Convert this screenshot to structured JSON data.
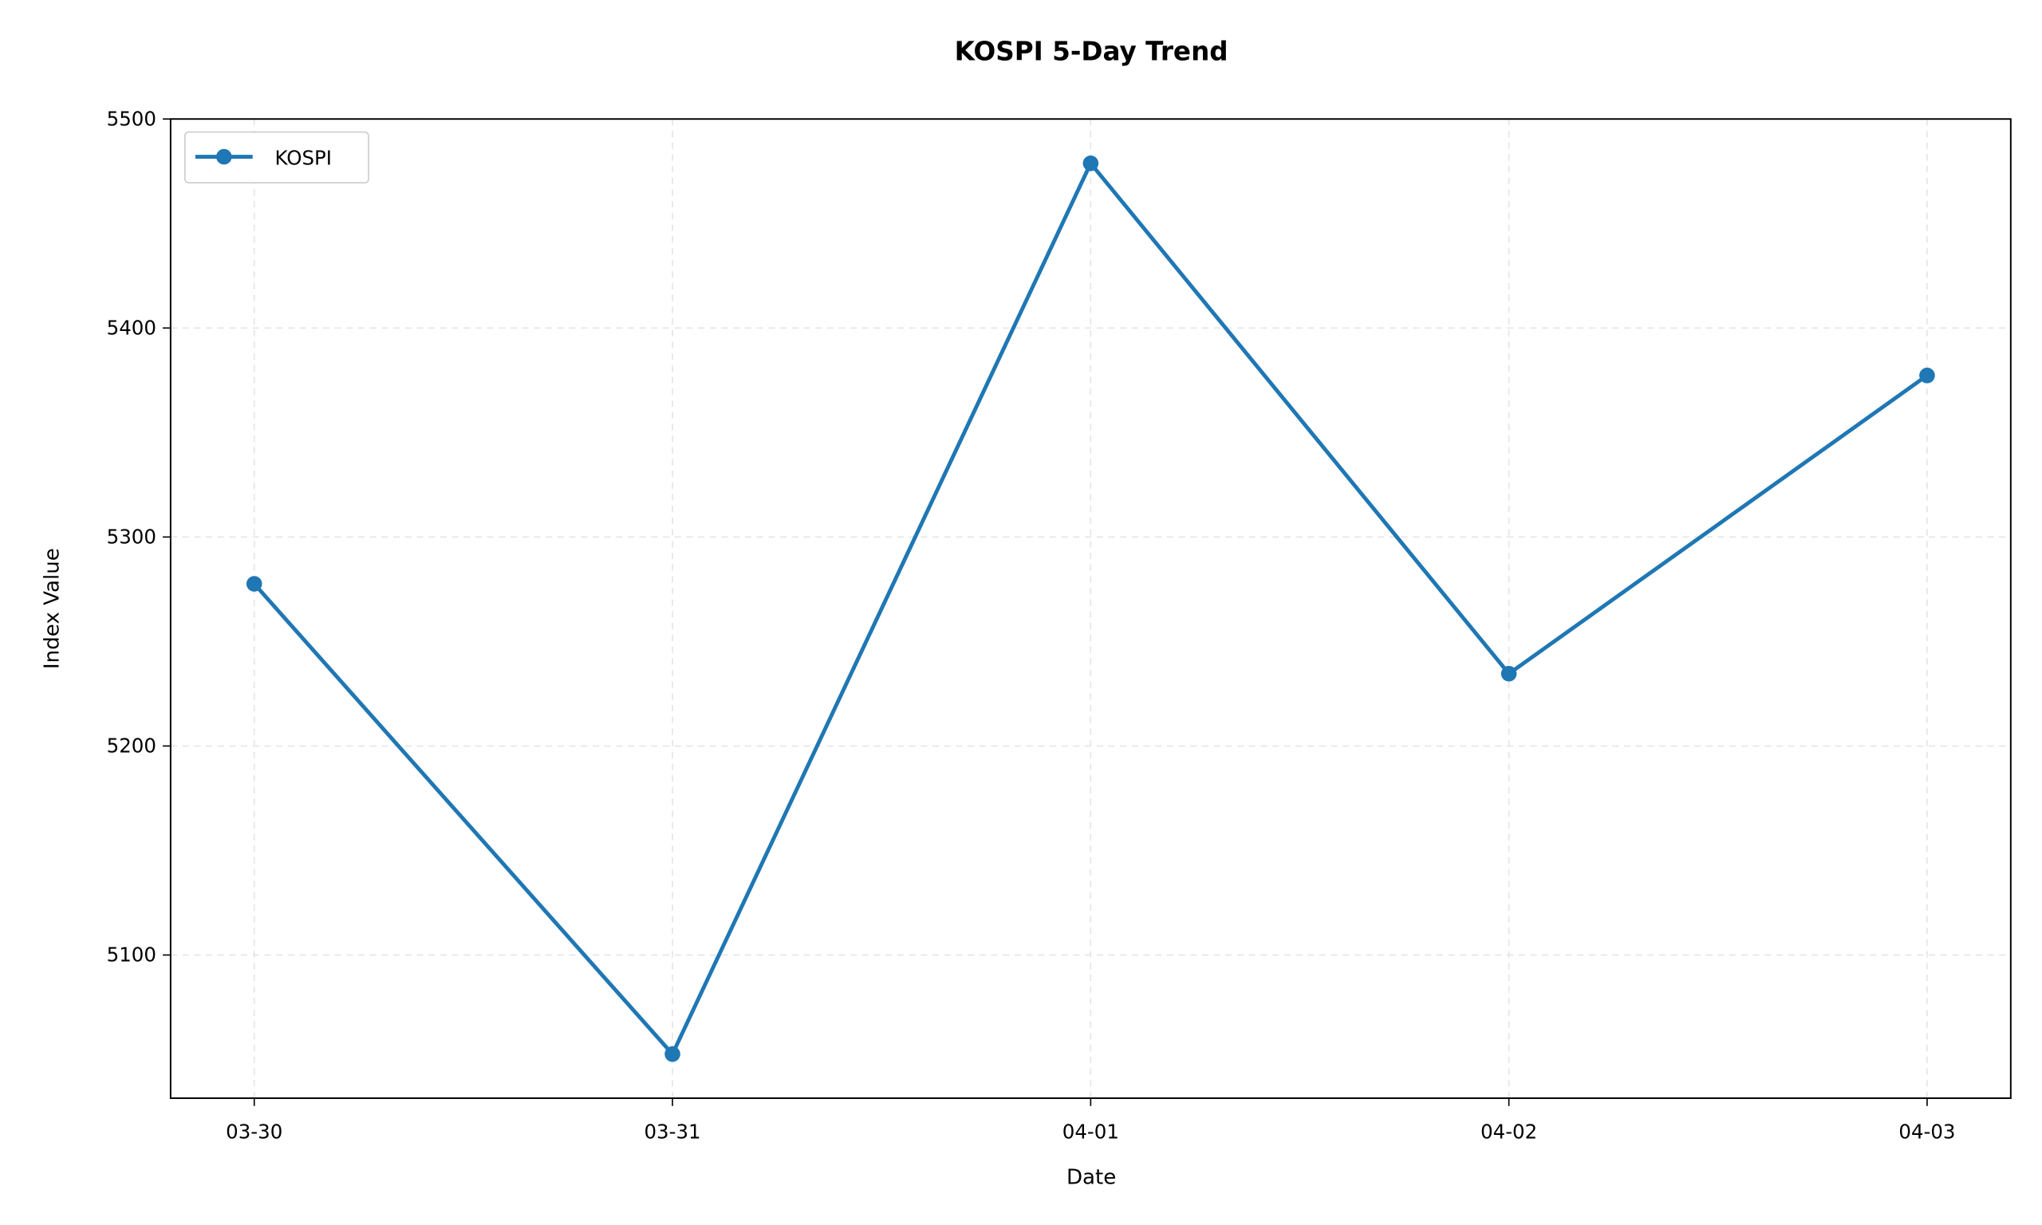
{
  "chart_data": {
    "type": "line",
    "title": "KOSPI 5-Day Trend",
    "xlabel": "Date",
    "ylabel": "Index Value",
    "categories": [
      "03-30",
      "03-31",
      "04-01",
      "04-02",
      "04-03"
    ],
    "series": [
      {
        "name": "KOSPI",
        "values": [
          5277.6,
          5052.6,
          5478.8,
          5234.6,
          5377.3
        ],
        "color": "#1f77b4"
      }
    ],
    "yticks": [
      5100,
      5200,
      5300,
      5400,
      5500
    ],
    "ylim": [
      5031.5,
      5500
    ],
    "grid": true,
    "legend": "top-left"
  }
}
